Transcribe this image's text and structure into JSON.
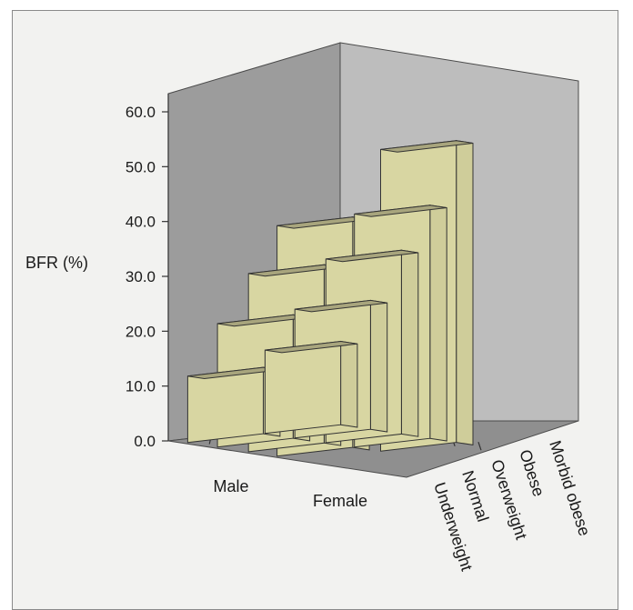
{
  "chart_data": {
    "type": "bar",
    "ylabel": "BFR (%)",
    "y_ticks": [
      "0.0",
      "10.0",
      "20.0",
      "30.0",
      "40.0",
      "50.0",
      "60.0"
    ],
    "ylim": [
      0,
      60
    ],
    "x_categories": [
      "Male",
      "Female"
    ],
    "depth_categories": [
      "Underweight",
      "Normal",
      "Overweight",
      "Obese",
      "Morbid obese"
    ],
    "series": [
      {
        "name": "Underweight",
        "values": [
          12.1,
          15.2
        ]
      },
      {
        "name": "Normal",
        "values": [
          22.5,
          23.5
        ]
      },
      {
        "name": "Overweight",
        "values": [
          32.5,
          33.5
        ]
      },
      {
        "name": "Obese",
        "values": [
          42.0,
          42.5
        ]
      },
      {
        "name": "Morbid obese",
        "values": [
          null,
          55.0
        ]
      }
    ],
    "grid": false,
    "legend": "none",
    "colors": {
      "bar_front": "#d8d6a2",
      "bar_top": "#a8a57d",
      "bar_side": "#cfcd9a",
      "back_wall": "#bdbdbd",
      "side_wall": "#9c9c9c",
      "floor": "#8f8f8f"
    }
  }
}
